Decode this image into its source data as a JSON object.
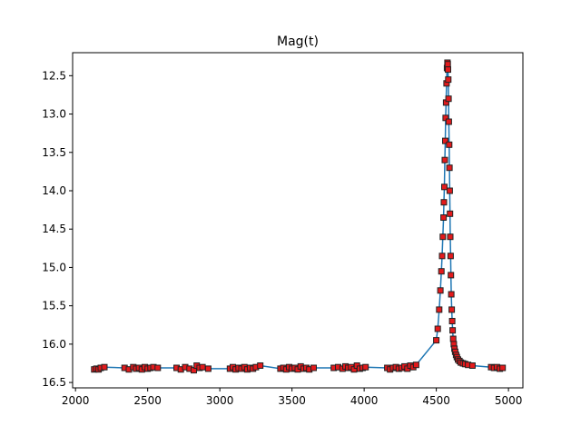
{
  "chart_data": {
    "type": "line",
    "title": "Mag(t)",
    "xlabel": "",
    "ylabel": "",
    "xlim": [
      1980,
      5100
    ],
    "ylim": [
      16.57,
      12.2
    ],
    "y_inverted": true,
    "grid": false,
    "xticks": [
      2000,
      2500,
      3000,
      3500,
      4000,
      4500,
      5000
    ],
    "xtick_labels": [
      "2000",
      "2500",
      "3000",
      "3500",
      "4000",
      "4500",
      "5000"
    ],
    "yticks": [
      12.5,
      13.0,
      13.5,
      14.0,
      14.5,
      15.0,
      15.5,
      16.0,
      16.5
    ],
    "ytick_labels": [
      "12.5",
      "13.0",
      "13.5",
      "14.0",
      "14.5",
      "15.0",
      "15.5",
      "16.0",
      "16.5"
    ],
    "line_color": "#1f77b4",
    "marker_face_color": "#e31a1c",
    "marker_edge_color": "#222222",
    "marker": "square",
    "series": [
      {
        "x": [
          2130,
          2145,
          2160,
          2175,
          2200,
          2340,
          2370,
          2400,
          2420,
          2440,
          2460,
          2480,
          2500,
          2520,
          2540,
          2570,
          2700,
          2730,
          2760,
          2790,
          2820,
          2840,
          2860,
          2880,
          2920,
          3070,
          3090,
          3110,
          3130,
          3150,
          3170,
          3190,
          3210,
          3230,
          3250,
          3280,
          3420,
          3440,
          3460,
          3480,
          3500,
          3520,
          3540,
          3560,
          3580,
          3600,
          3620,
          3650,
          3790,
          3820,
          3850,
          3870,
          3890,
          3910,
          3930,
          3950,
          3970,
          3990,
          4010,
          4160,
          4180,
          4200,
          4220,
          4240,
          4260,
          4280,
          4300,
          4320,
          4340,
          4360,
          4500,
          4510,
          4520,
          4528,
          4535,
          4540,
          4545,
          4550,
          4553,
          4556,
          4559,
          4562,
          4565,
          4568,
          4571,
          4574,
          4577,
          4579,
          4581,
          4583,
          4585,
          4587,
          4589,
          4591,
          4593,
          4595,
          4597,
          4599,
          4601,
          4604,
          4607,
          4610,
          4613,
          4617,
          4621,
          4626,
          4631,
          4637,
          4643,
          4650,
          4660,
          4670,
          4685,
          4700,
          4720,
          4750,
          4880,
          4900,
          4920,
          4940,
          4960
        ],
        "y": [
          16.33,
          16.32,
          16.33,
          16.31,
          16.3,
          16.31,
          16.33,
          16.3,
          16.32,
          16.31,
          16.33,
          16.3,
          16.32,
          16.31,
          16.3,
          16.31,
          16.31,
          16.33,
          16.3,
          16.32,
          16.34,
          16.28,
          16.31,
          16.3,
          16.32,
          16.32,
          16.3,
          16.33,
          16.31,
          16.32,
          16.3,
          16.33,
          16.31,
          16.32,
          16.3,
          16.28,
          16.32,
          16.31,
          16.33,
          16.3,
          16.32,
          16.31,
          16.33,
          16.29,
          16.32,
          16.31,
          16.33,
          16.31,
          16.31,
          16.3,
          16.32,
          16.29,
          16.31,
          16.3,
          16.33,
          16.28,
          16.32,
          16.31,
          16.3,
          16.31,
          16.33,
          16.31,
          16.3,
          16.32,
          16.31,
          16.29,
          16.32,
          16.28,
          16.3,
          16.27,
          15.95,
          15.8,
          15.55,
          15.3,
          15.05,
          14.85,
          14.6,
          14.35,
          14.15,
          13.95,
          13.6,
          13.35,
          13.05,
          12.85,
          12.6,
          12.4,
          12.33,
          12.35,
          12.42,
          12.55,
          12.8,
          13.1,
          13.4,
          13.7,
          14.0,
          14.3,
          14.6,
          14.85,
          15.1,
          15.35,
          15.55,
          15.7,
          15.82,
          15.93,
          16.0,
          16.06,
          16.1,
          16.14,
          16.17,
          16.2,
          16.22,
          16.24,
          16.25,
          16.26,
          16.27,
          16.28,
          16.3,
          16.31,
          16.3,
          16.32,
          16.31
        ]
      }
    ]
  }
}
